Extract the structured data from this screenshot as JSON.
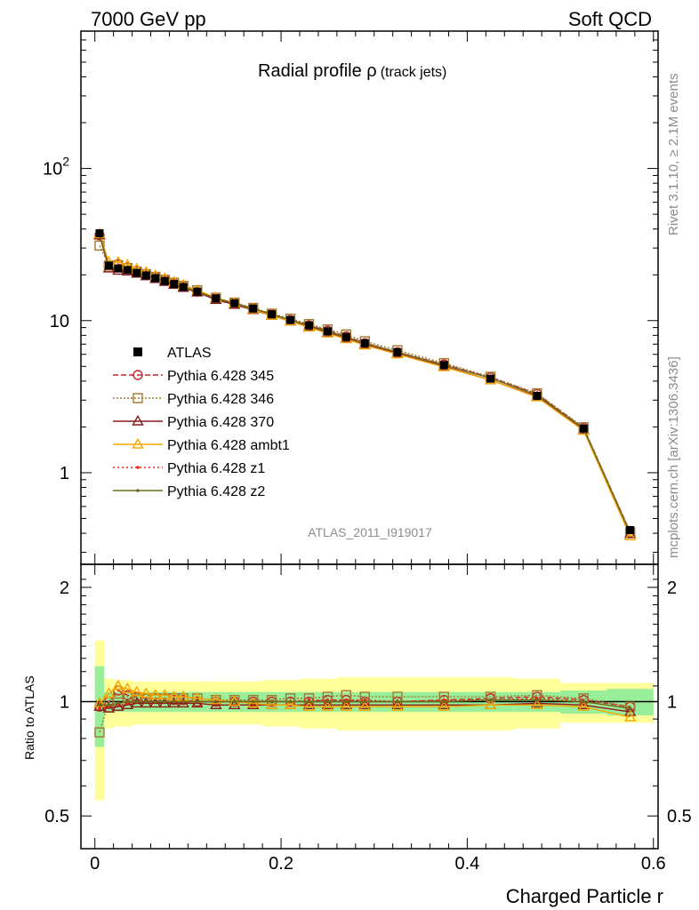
{
  "header": {
    "left": "7000 GeV pp",
    "right": "Soft QCD"
  },
  "title": {
    "main": "Radial profile ",
    "symbol": "ρ",
    "sub": "(track jets)"
  },
  "side_labels": {
    "top": "Rivet 3.1.10, ≥ 2.1M events",
    "bottom": "mcplots.cern.ch [arXiv:1306.3436]"
  },
  "analysis_id": "ATLAS_2011_I919017",
  "xlabel": "Charged Particle r",
  "ratio_ylabel": "Ratio to ATLAS",
  "ticks": {
    "main_y": [
      {
        "v": 100,
        "base": "10",
        "exp": "2"
      },
      {
        "v": 10,
        "label": "10"
      },
      {
        "v": 1,
        "label": "1"
      }
    ],
    "ratio_y": [
      {
        "v": 2,
        "label": "2"
      },
      {
        "v": 1,
        "label": "1"
      },
      {
        "v": 0.5,
        "label": "0.5"
      }
    ],
    "x": [
      {
        "v": 0,
        "label": "0"
      },
      {
        "v": 0.2,
        "label": "0.2"
      },
      {
        "v": 0.4,
        "label": "0.4"
      },
      {
        "v": 0.6,
        "label": "0.6"
      }
    ]
  },
  "chart_data": {
    "type": "line",
    "xlim": [
      -0.015,
      0.605
    ],
    "ylim": [
      0.25,
      800
    ],
    "yscale": "log",
    "ratio_ylim": [
      0.41,
      2.3
    ],
    "ratio_yscale": "log",
    "x": [
      0.005,
      0.015,
      0.025,
      0.035,
      0.045,
      0.055,
      0.065,
      0.075,
      0.085,
      0.095,
      0.11,
      0.13,
      0.15,
      0.17,
      0.19,
      0.21,
      0.23,
      0.25,
      0.27,
      0.29,
      0.325,
      0.375,
      0.425,
      0.475,
      0.525,
      0.575
    ],
    "bin_edges": [
      0,
      0.01,
      0.02,
      0.03,
      0.04,
      0.05,
      0.06,
      0.07,
      0.08,
      0.09,
      0.1,
      0.12,
      0.14,
      0.16,
      0.18,
      0.2,
      0.22,
      0.24,
      0.26,
      0.28,
      0.3,
      0.35,
      0.4,
      0.45,
      0.5,
      0.55,
      0.6
    ],
    "atlas": [
      37.5,
      23.0,
      22.0,
      21.5,
      20.6,
      19.8,
      19.0,
      18.2,
      17.4,
      16.6,
      15.5,
      14.0,
      13.0,
      12.0,
      11.0,
      10.1,
      9.3,
      8.5,
      7.8,
      7.1,
      6.2,
      5.1,
      4.15,
      3.2,
      1.95,
      0.42
    ],
    "band_green": [
      0.24,
      0.06,
      0.06,
      0.06,
      0.06,
      0.06,
      0.06,
      0.06,
      0.06,
      0.06,
      0.06,
      0.06,
      0.06,
      0.06,
      0.06,
      0.06,
      0.06,
      0.06,
      0.06,
      0.06,
      0.06,
      0.06,
      0.06,
      0.06,
      0.07,
      0.08
    ],
    "band_yellow": [
      0.45,
      0.15,
      0.14,
      0.14,
      0.13,
      0.13,
      0.13,
      0.13,
      0.13,
      0.13,
      0.13,
      0.13,
      0.13,
      0.13,
      0.14,
      0.14,
      0.15,
      0.15,
      0.16,
      0.16,
      0.16,
      0.16,
      0.16,
      0.15,
      0.12,
      0.12
    ],
    "series": [
      {
        "name": "Pythia 6.428 345",
        "color": "#c1272d",
        "marker": "circle",
        "dash": "6,3",
        "ratio": [
          0.97,
          1.0,
          1.07,
          1.04,
          1.03,
          1.02,
          1.02,
          1.02,
          1.01,
          1.01,
          1.0,
          1.0,
          1.0,
          1.0,
          1.0,
          1.0,
          1.0,
          1.01,
          1.01,
          1.0,
          1.0,
          1.01,
          1.02,
          1.03,
          1.01,
          0.97
        ]
      },
      {
        "name": "Pythia 6.428 346",
        "color": "#a0782d",
        "marker": "square",
        "dash": "2,2",
        "ratio": [
          0.83,
          1.0,
          1.05,
          1.03,
          1.02,
          1.02,
          1.02,
          1.02,
          1.02,
          1.02,
          1.02,
          1.01,
          1.01,
          1.01,
          1.01,
          1.02,
          1.02,
          1.03,
          1.04,
          1.03,
          1.03,
          1.03,
          1.03,
          1.04,
          1.02,
          0.97
        ]
      },
      {
        "name": "Pythia 6.428 370",
        "color": "#8b1a1a",
        "marker": "triangle",
        "dash": "",
        "ratio": [
          0.97,
          0.96,
          0.97,
          0.98,
          0.99,
          0.99,
          0.99,
          0.99,
          0.99,
          0.99,
          0.99,
          0.98,
          0.98,
          0.98,
          0.98,
          0.98,
          0.98,
          0.98,
          0.98,
          0.98,
          0.98,
          0.98,
          0.98,
          0.99,
          0.98,
          0.94
        ]
      },
      {
        "name": "Pythia 6.428 ambt1",
        "color": "#f5a500",
        "marker": "triangle",
        "dash": "",
        "ratio": [
          0.99,
          1.05,
          1.1,
          1.08,
          1.06,
          1.05,
          1.04,
          1.04,
          1.03,
          1.03,
          1.02,
          1.01,
          1.0,
          0.99,
          0.98,
          0.98,
          0.97,
          0.97,
          0.97,
          0.97,
          0.97,
          0.97,
          0.98,
          0.98,
          0.97,
          0.91
        ]
      },
      {
        "name": "Pythia 6.428 z1",
        "color": "#e8261c",
        "marker": "dot",
        "dash": "2,3",
        "ratio": [
          0.96,
          0.97,
          0.98,
          0.99,
          1.0,
          1.0,
          1.0,
          1.0,
          1.0,
          1.0,
          1.0,
          1.0,
          1.0,
          1.0,
          1.0,
          1.0,
          1.01,
          1.01,
          1.01,
          1.01,
          1.0,
          1.01,
          1.01,
          1.02,
          1.0,
          0.96
        ]
      },
      {
        "name": "Pythia 6.428 z2",
        "color": "#6b6b1a",
        "marker": "dot",
        "dash": "",
        "ratio": [
          0.98,
          0.98,
          0.99,
          1.0,
          1.0,
          1.0,
          1.0,
          1.0,
          1.0,
          1.0,
          1.0,
          1.0,
          1.0,
          1.0,
          1.0,
          1.0,
          1.0,
          1.0,
          1.0,
          1.0,
          1.0,
          1.0,
          1.01,
          1.01,
          1.0,
          0.96
        ]
      }
    ],
    "legend": {
      "data_label": "ATLAS",
      "placement": "middle-left"
    }
  }
}
